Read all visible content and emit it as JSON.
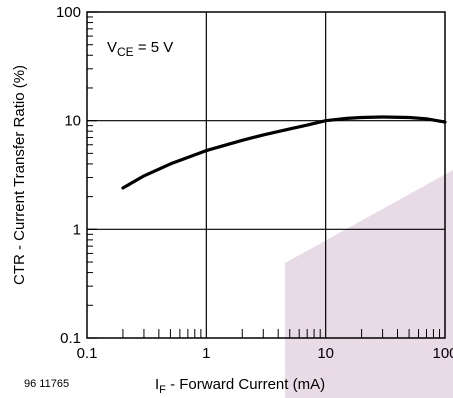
{
  "chart_data": {
    "type": "line",
    "title": "",
    "annotation": {
      "main": "V",
      "sub": "CE",
      "rest": " = 5 V"
    },
    "xlabel": {
      "main": "I",
      "sub": "F",
      "rest": " - Forward Current (mA)"
    },
    "ylabel": "CTR - Current Transfer Ratio (%)",
    "figure_id": "96 11765",
    "x_scale": "log",
    "y_scale": "log",
    "xlim": [
      0.1,
      100
    ],
    "ylim": [
      0.1,
      100
    ],
    "x_tick_labels": [
      "0.1",
      "1",
      "10",
      "100"
    ],
    "y_tick_labels": [
      "0.1",
      "1",
      "10",
      "100"
    ],
    "grid": "major",
    "series": [
      {
        "x": [
          0.2,
          0.3,
          0.5,
          1,
          2,
          3,
          5,
          7,
          10,
          15,
          20,
          30,
          50,
          70,
          100
        ],
        "y": [
          2.4,
          3.1,
          4.0,
          5.3,
          6.6,
          7.4,
          8.4,
          9.1,
          10.0,
          10.5,
          10.7,
          10.8,
          10.7,
          10.4,
          9.7
        ]
      }
    ],
    "watermark_color": "#e8dbe6"
  }
}
